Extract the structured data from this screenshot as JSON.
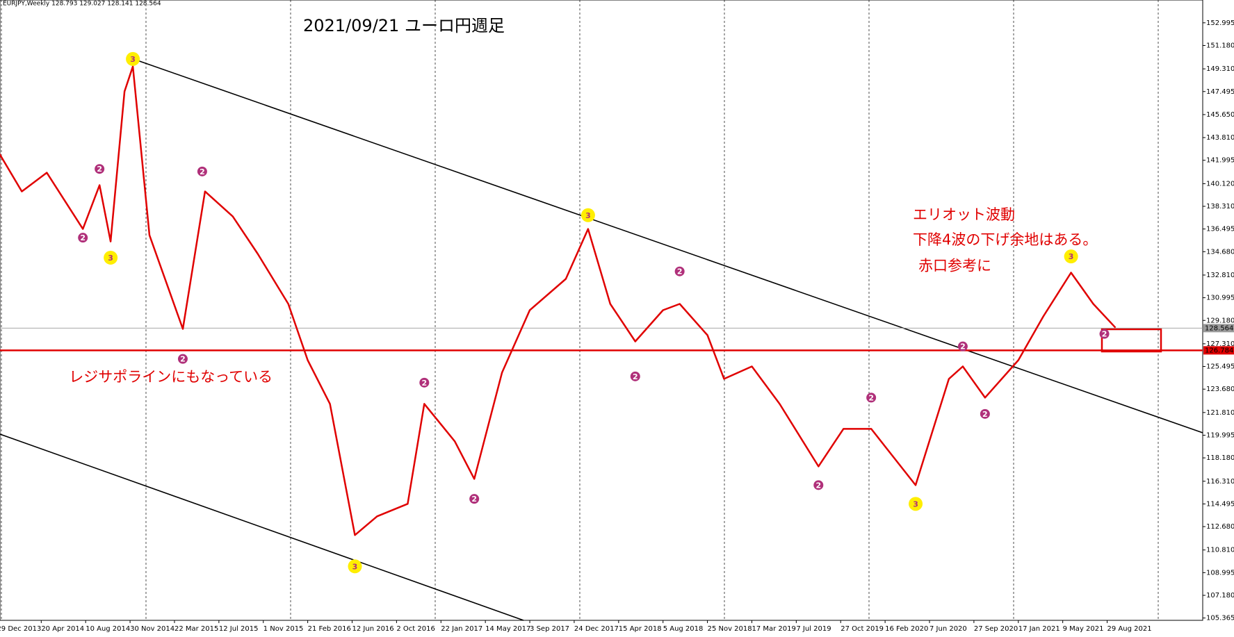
{
  "header": {
    "symbol_info": "EURJPY,Weekly  128.793 129.027 128.141 128.564"
  },
  "chart_data": {
    "type": "line",
    "title": "2021/09/21  ユーロ円週足",
    "annotations": [
      {
        "text": "エリオット波動",
        "x": "2020-04-26",
        "y": 137.6
      },
      {
        "text": "下降4波の下げ余地はある。",
        "x": "2020-04-26",
        "y": 135.6
      },
      {
        "text": "赤口参考に",
        "x": "2020-05-10",
        "y": 133.5
      },
      {
        "text": "レジサポラインにもなっている",
        "x": "2014-06-29",
        "y": 124.6
      }
    ],
    "x": [
      "2014-01-05",
      "2014-03-02",
      "2014-05-04",
      "2014-08-03",
      "2014-09-14",
      "2014-10-12",
      "2014-11-16",
      "2014-12-07",
      "2015-01-18",
      "2015-04-12",
      "2015-06-07",
      "2015-08-16",
      "2015-10-18",
      "2016-01-03",
      "2016-02-21",
      "2016-04-17",
      "2016-06-19",
      "2016-08-14",
      "2016-10-30",
      "2016-12-11",
      "2017-02-26",
      "2017-04-16",
      "2017-06-25",
      "2017-09-03",
      "2017-12-03",
      "2018-01-28",
      "2018-03-25",
      "2018-05-27",
      "2018-08-05",
      "2018-09-16",
      "2018-11-25",
      "2019-01-06",
      "2019-03-17",
      "2019-05-26",
      "2019-09-01",
      "2019-11-03",
      "2020-01-12",
      "2020-05-03",
      "2020-07-26",
      "2020-08-30",
      "2020-10-25",
      "2021-01-17",
      "2021-03-21",
      "2021-05-30",
      "2021-07-25",
      "2021-09-19"
    ],
    "values": [
      142.5,
      139.5,
      141.0,
      136.5,
      140.0,
      135.5,
      147.5,
      149.5,
      136.0,
      128.5,
      139.5,
      137.5,
      134.5,
      130.5,
      126.0,
      122.5,
      112.0,
      113.5,
      114.5,
      122.5,
      119.5,
      116.5,
      125.0,
      130.0,
      132.5,
      136.5,
      130.5,
      127.5,
      130.0,
      130.5,
      128.0,
      124.5,
      125.5,
      122.5,
      117.5,
      120.5,
      120.5,
      116.0,
      124.5,
      125.5,
      123.0,
      126.0,
      129.5,
      133.0,
      130.5,
      128.6
    ],
    "color": "#e00000",
    "xlim": [
      "2014-01-06",
      "2022-04-27"
    ],
    "ylim": [
      105.18,
      154.82
    ],
    "xticks": [
      {
        "value": "2013-12-29",
        "label": "29 Dec 2013"
      },
      {
        "value": "2014-04-20",
        "label": "20 Apr 2014"
      },
      {
        "value": "2014-08-10",
        "label": "10 Aug 2014"
      },
      {
        "value": "2014-11-30",
        "label": "30 Nov 2014"
      },
      {
        "value": "2015-03-22",
        "label": "22 Mar 2015"
      },
      {
        "value": "2015-07-12",
        "label": "12 Jul 2015"
      },
      {
        "value": "2015-11-01",
        "label": "1 Nov 2015"
      },
      {
        "value": "2016-02-21",
        "label": "21 Feb 2016"
      },
      {
        "value": "2016-06-12",
        "label": "12 Jun 2016"
      },
      {
        "value": "2016-10-02",
        "label": "2 Oct 2016"
      },
      {
        "value": "2017-01-22",
        "label": "22 Jan 2017"
      },
      {
        "value": "2017-05-14",
        "label": "14 May 2017"
      },
      {
        "value": "2017-09-03",
        "label": "3 Sep 2017"
      },
      {
        "value": "2017-12-24",
        "label": "24 Dec 2017"
      },
      {
        "value": "2018-04-15",
        "label": "15 Apr 2018"
      },
      {
        "value": "2018-08-05",
        "label": "5 Aug 2018"
      },
      {
        "value": "2018-11-25",
        "label": "25 Nov 2018"
      },
      {
        "value": "2019-03-17",
        "label": "17 Mar 2019"
      },
      {
        "value": "2019-07-07",
        "label": "7 Jul 2019"
      },
      {
        "value": "2019-10-27",
        "label": "27 Oct 2019"
      },
      {
        "value": "2020-02-16",
        "label": "16 Feb 2020"
      },
      {
        "value": "2020-06-07",
        "label": "7 Jun 2020"
      },
      {
        "value": "2020-09-27",
        "label": "27 Sep 2020"
      },
      {
        "value": "2021-01-17",
        "label": "17 Jan 2021"
      },
      {
        "value": "2021-05-09",
        "label": "9 May 2021"
      },
      {
        "value": "2021-08-29",
        "label": "29 Aug 2021"
      }
    ],
    "yticks": [
      152.995,
      {
        "value": 151.18,
        "label": "151.180"
      },
      {
        "value": 149.31,
        "label": "149.310"
      },
      147.495,
      {
        "value": 145.65,
        "label": "145.650"
      },
      {
        "value": 143.81,
        "label": "143.810"
      },
      141.995,
      {
        "value": 140.12,
        "label": "140.120"
      },
      {
        "value": 138.31,
        "label": "138.310"
      },
      136.495,
      {
        "value": 134.68,
        "label": "134.680"
      },
      {
        "value": 132.81,
        "label": "132.810"
      },
      130.995,
      {
        "value": 129.18,
        "label": "129.180"
      },
      {
        "value": 127.31,
        "label": "127.310"
      },
      125.495,
      {
        "value": 123.68,
        "label": "123.680"
      },
      {
        "value": 121.81,
        "label": "121.810"
      },
      119.995,
      {
        "value": 118.18,
        "label": "118.180"
      },
      {
        "value": 116.31,
        "label": "116.310"
      },
      114.495,
      {
        "value": 112.68,
        "label": "112.680"
      },
      {
        "value": 110.81,
        "label": "110.810"
      },
      108.995,
      {
        "value": 107.18,
        "label": "107.180"
      },
      105.365
    ],
    "price_levels": [
      {
        "value": 128.564,
        "color": "#9a9a9a"
      },
      {
        "value": 126.784,
        "color": "#e00000"
      }
    ],
    "wave_labels": [
      {
        "label": "3",
        "x": "2014-12-07",
        "y": 150.1,
        "color": "#ffee00"
      },
      {
        "label": "2",
        "x": "2014-09-14",
        "y": 141.3,
        "color": "#b0307a"
      },
      {
        "label": "2",
        "x": "2014-08-03",
        "y": 135.8,
        "color": "#b0307a"
      },
      {
        "label": "3",
        "x": "2014-10-12",
        "y": 134.2,
        "color": "#ffee00"
      },
      {
        "label": "2",
        "x": "2015-05-31",
        "y": 141.1,
        "color": "#b0307a"
      },
      {
        "label": "2",
        "x": "2015-04-12",
        "y": 126.1,
        "color": "#b0307a"
      },
      {
        "label": "3",
        "x": "2016-06-19",
        "y": 109.5,
        "color": "#ffee00"
      },
      {
        "label": "2",
        "x": "2016-12-11",
        "y": 124.2,
        "color": "#b0307a"
      },
      {
        "label": "2",
        "x": "2017-04-16",
        "y": 114.9,
        "color": "#b0307a"
      },
      {
        "label": "3",
        "x": "2018-01-28",
        "y": 137.6,
        "color": "#ffee00"
      },
      {
        "label": "2",
        "x": "2018-05-27",
        "y": 124.7,
        "color": "#b0307a"
      },
      {
        "label": "2",
        "x": "2018-09-16",
        "y": 133.1,
        "color": "#b0307a"
      },
      {
        "label": "2",
        "x": "2019-09-01",
        "y": 116.0,
        "color": "#b0307a"
      },
      {
        "label": "2",
        "x": "2020-01-12",
        "y": 123.0,
        "color": "#b0307a"
      },
      {
        "label": "3",
        "x": "2020-05-03",
        "y": 114.5,
        "color": "#ffee00"
      },
      {
        "label": "2",
        "x": "2020-08-30",
        "y": 127.1,
        "color": "#b0307a"
      },
      {
        "label": "2",
        "x": "2020-10-25",
        "y": 121.7,
        "color": "#b0307a"
      },
      {
        "label": "3",
        "x": "2021-05-30",
        "y": 134.3,
        "color": "#ffee00"
      },
      {
        "label": "2",
        "x": "2021-08-22",
        "y": 128.1,
        "color": "#b0307a"
      }
    ]
  }
}
